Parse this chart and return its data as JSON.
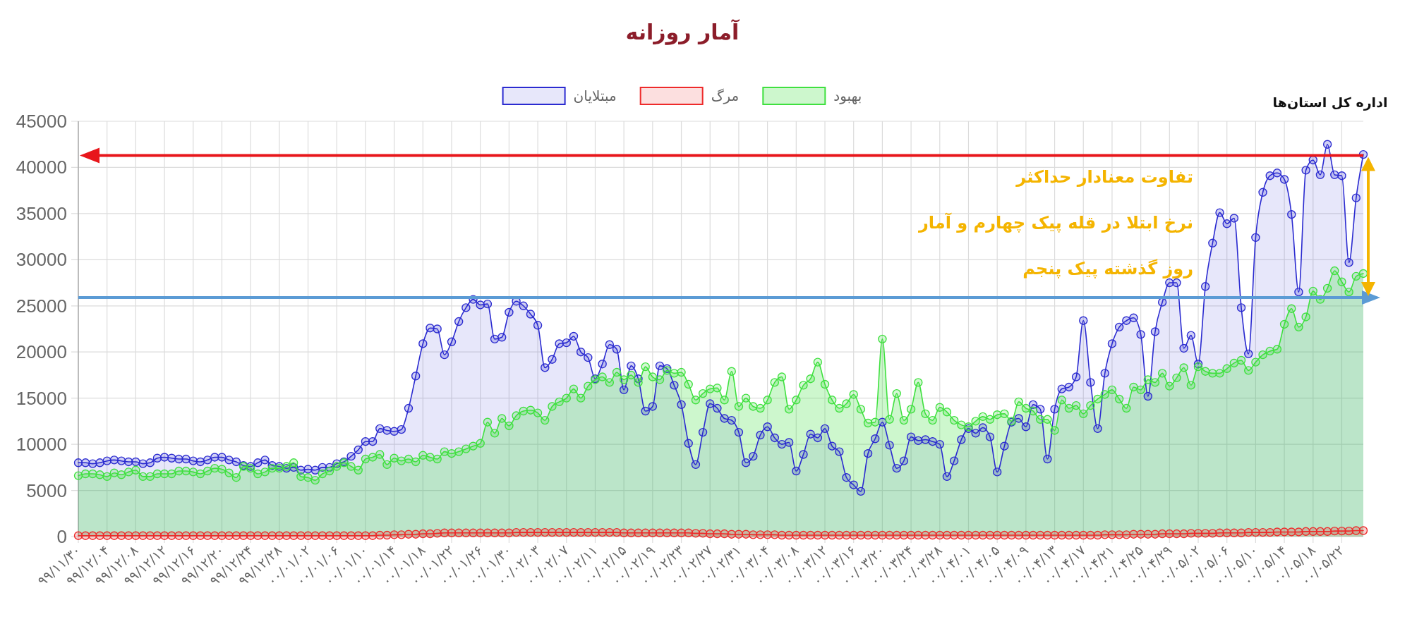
{
  "chart_data": {
    "type": "area",
    "title": "آمار روزانه",
    "categories": [
      "۹۹/۱۱/۳۰",
      null,
      null,
      null,
      "۹۹/۱۲/۰۴",
      null,
      null,
      null,
      "۹۹/۱۲/۰۸",
      null,
      null,
      null,
      "۹۹/۱۲/۱۲",
      null,
      null,
      null,
      "۹۹/۱۲/۱۶",
      null,
      null,
      null,
      "۹۹/۱۲/۲۰",
      null,
      null,
      null,
      "۹۹/۱۲/۲۴",
      null,
      null,
      null,
      "۹۹/۱۲/۲۸",
      null,
      null,
      null,
      "۰۰/۰۱/۰۲",
      null,
      null,
      null,
      "۰۰/۰۱/۰۶",
      null,
      null,
      null,
      "۰۰/۰۱/۱۰",
      null,
      null,
      null,
      "۰۰/۰۱/۱۴",
      null,
      null,
      null,
      "۰۰/۰۱/۱۸",
      null,
      null,
      null,
      "۰۰/۰۱/۲۲",
      null,
      null,
      null,
      "۰۰/۰۱/۲۶",
      null,
      null,
      null,
      "۰۰/۰۱/۳۰",
      null,
      null,
      null,
      "۰۰/۰۲/۰۳",
      null,
      null,
      null,
      "۰۰/۰۲/۰۷",
      null,
      null,
      null,
      "۰۰/۰۲/۱۱",
      null,
      null,
      null,
      "۰۰/۰۲/۱۵",
      null,
      null,
      null,
      "۰۰/۰۲/۱۹",
      null,
      null,
      null,
      "۰۰/۰۲/۲۳",
      null,
      null,
      null,
      "۰۰/۰۲/۲۷",
      null,
      null,
      null,
      "۰۰/۰۲/۳۱",
      null,
      null,
      null,
      "۰۰/۰۳/۰۴",
      null,
      null,
      null,
      "۰۰/۰۳/۰۸",
      null,
      null,
      null,
      "۰۰/۰۳/۱۲",
      null,
      null,
      null,
      "۰۰/۰۳/۱۶",
      null,
      null,
      null,
      "۰۰/۰۳/۲۰",
      null,
      null,
      null,
      "۰۰/۰۳/۲۴",
      null,
      null,
      null,
      "۰۰/۰۳/۲۸",
      null,
      null,
      null,
      "۰۰/۰۴/۰۱",
      null,
      null,
      null,
      "۰۰/۰۴/۰۵",
      null,
      null,
      null,
      "۰۰/۰۴/۰۹",
      null,
      null,
      null,
      "۰۰/۰۴/۱۳",
      null,
      null,
      null,
      "۰۰/۰۴/۱۷",
      null,
      null,
      null,
      "۰۰/۰۴/۲۱",
      null,
      null,
      null,
      "۰۰/۰۴/۲۵",
      null,
      null,
      null,
      "۰۰/۰۴/۲۹",
      null,
      null,
      null,
      "۰۰/۰۵/۰۲",
      null,
      null,
      null,
      "۰۰/۰۵/۰۶",
      null,
      null,
      null,
      "۰۰/۰۵/۱۰",
      null,
      null,
      null,
      "۰۰/۰۵/۱۴",
      null,
      null,
      null,
      "۰۰/۰۵/۱۸",
      null,
      null,
      null,
      "۰۰/۰۵/۲۲",
      null,
      null,
      null
    ],
    "series": [
      {
        "name": "مبتلایان",
        "color": "#2b2bd0",
        "values": [
          8000,
          8000,
          7900,
          8000,
          8200,
          8300,
          8200,
          8100,
          8100,
          7900,
          8000,
          8500,
          8600,
          8500,
          8400,
          8400,
          8200,
          8100,
          8300,
          8600,
          8600,
          8300,
          8100,
          7700,
          7600,
          8000,
          8300,
          7700,
          7600,
          7400,
          7500,
          7200,
          7300,
          7200,
          7500,
          7500,
          7900,
          8100,
          8700,
          9400,
          10300,
          10300,
          11700,
          11500,
          11400,
          11600,
          13900,
          17400,
          20900,
          22600,
          22500,
          19700,
          21100,
          23300,
          24800,
          25700,
          25100,
          25200,
          21400,
          21600,
          24300,
          25500,
          25000,
          24100,
          22900,
          18300,
          19200,
          20900,
          21000,
          21700,
          20000,
          19400,
          17100,
          18700,
          20800,
          20300,
          15900,
          18500,
          17100,
          13600,
          14100,
          18500,
          18200,
          16400,
          14300,
          10100,
          7800,
          11300,
          14400,
          13900,
          12800,
          12600,
          11300,
          8000,
          8700,
          11000,
          11900,
          10700,
          10000,
          10200,
          7100,
          8900,
          11100,
          10700,
          11700,
          9800,
          9200,
          6400,
          5600,
          4900,
          9000,
          10600,
          12400,
          9900,
          7400,
          8200,
          10800,
          10400,
          10500,
          10300,
          10000,
          6500,
          8200,
          10500,
          11700,
          11200,
          11800,
          10800,
          7000,
          9800,
          12400,
          12800,
          11900,
          14300,
          13800,
          8400,
          13800,
          16000,
          16200,
          17300,
          23400,
          16700,
          11700,
          17700,
          20900,
          22700,
          23400,
          23700,
          21900,
          15200,
          22200,
          25400,
          27500,
          27500,
          20400,
          21800,
          18700,
          27100,
          31800,
          35100,
          33900,
          34500,
          24800,
          19800,
          32400,
          37300,
          39100,
          39400,
          38700,
          34900,
          26500,
          39700,
          40800,
          39200,
          42500,
          39200,
          39100,
          29700,
          36700,
          41400
        ]
      },
      {
        "name": "مرگ",
        "color": "#ee2a2a",
        "values": [
          100,
          100,
          100,
          100,
          100,
          100,
          100,
          100,
          100,
          100,
          100,
          100,
          100,
          100,
          100,
          100,
          100,
          100,
          100,
          100,
          100,
          100,
          100,
          100,
          100,
          100,
          100,
          100,
          100,
          100,
          100,
          100,
          100,
          100,
          100,
          100,
          100,
          100,
          100,
          100,
          100,
          100,
          150,
          150,
          200,
          200,
          250,
          250,
          300,
          300,
          350,
          400,
          400,
          400,
          400,
          400,
          400,
          400,
          400,
          400,
          400,
          450,
          450,
          450,
          450,
          450,
          450,
          450,
          450,
          450,
          450,
          450,
          450,
          450,
          450,
          450,
          400,
          400,
          400,
          400,
          400,
          400,
          400,
          400,
          400,
          400,
          350,
          350,
          300,
          300,
          300,
          250,
          250,
          250,
          200,
          200,
          200,
          200,
          150,
          150,
          150,
          150,
          150,
          150,
          150,
          150,
          150,
          150,
          150,
          150,
          150,
          150,
          150,
          150,
          150,
          150,
          150,
          150,
          150,
          150,
          150,
          150,
          150,
          150,
          150,
          150,
          150,
          150,
          150,
          150,
          150,
          150,
          150,
          150,
          150,
          150,
          150,
          150,
          150,
          150,
          150,
          150,
          150,
          200,
          200,
          200,
          200,
          250,
          250,
          250,
          250,
          300,
          300,
          300,
          300,
          350,
          350,
          350,
          350,
          400,
          400,
          400,
          400,
          450,
          450,
          450,
          450,
          500,
          500,
          500,
          500,
          550,
          550,
          550,
          550,
          600,
          600,
          600,
          650,
          650
        ]
      },
      {
        "name": "بهبود",
        "color": "#3fe03f",
        "values": [
          6600,
          6800,
          6800,
          6700,
          6500,
          6900,
          6700,
          7000,
          7200,
          6500,
          6500,
          6800,
          6800,
          6800,
          7100,
          7100,
          7000,
          6800,
          7100,
          7400,
          7300,
          6900,
          6400,
          7600,
          7400,
          6800,
          7000,
          7400,
          7400,
          7600,
          8000,
          6500,
          6400,
          6100,
          6800,
          7100,
          7600,
          8000,
          7600,
          7200,
          8400,
          8600,
          8900,
          7800,
          8500,
          8200,
          8400,
          8100,
          8800,
          8600,
          8400,
          9200,
          9000,
          9200,
          9500,
          9800,
          10100,
          12400,
          11200,
          12800,
          12000,
          13100,
          13600,
          13700,
          13400,
          12600,
          14100,
          14600,
          15000,
          16000,
          15000,
          16300,
          17000,
          17300,
          16700,
          17800,
          17000,
          17500,
          16700,
          18400,
          17300,
          17000,
          18000,
          17700,
          17800,
          16500,
          14800,
          15500,
          16000,
          16100,
          14800,
          17900,
          14100,
          15000,
          14100,
          13900,
          14800,
          16700,
          17300,
          13800,
          14800,
          16400,
          17100,
          18900,
          16500,
          14800,
          13900,
          14400,
          15400,
          13800,
          12300,
          12400,
          21400,
          12700,
          15500,
          12600,
          13800,
          16700,
          13300,
          12600,
          14000,
          13500,
          12600,
          12100,
          11900,
          12500,
          13000,
          12700,
          13200,
          13300,
          12500,
          14600,
          13900,
          13600,
          12700,
          12700,
          11500,
          14800,
          13900,
          14200,
          13300,
          14200,
          14900,
          15400,
          15900,
          14900,
          13900,
          16200,
          15900,
          17000,
          16700,
          17700,
          16300,
          17200,
          18300,
          16400,
          18400,
          17900,
          17700,
          17700,
          18200,
          18800,
          19100,
          18000,
          18900,
          19700,
          20100,
          20300,
          23000,
          24700,
          22700,
          23800,
          26600,
          25700,
          26900,
          28800,
          27600,
          26500,
          28200,
          28500
        ]
      }
    ],
    "ylim": [
      0,
      45000
    ],
    "yticks": [
      0,
      5000,
      10000,
      15000,
      20000,
      25000,
      30000,
      35000,
      40000,
      45000
    ],
    "grid": true,
    "legend": "top",
    "marker": "circle",
    "ref_lines": [
      {
        "axis": "y",
        "value": 41300,
        "color": "#e8161b"
      },
      {
        "axis": "y",
        "value": 25900,
        "color": "#5b9bd5"
      }
    ],
    "annotations": [
      "تفاوت معنادار حداکثر",
      "نرخ ابتلا در قله پیک چهارم و آمار",
      "روز گذشته پیک پنجم",
      "اداره کل استان‌ها"
    ]
  }
}
